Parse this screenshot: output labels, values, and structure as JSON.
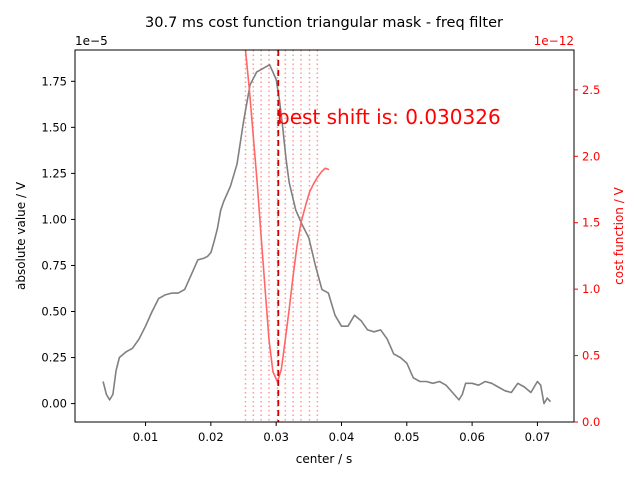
{
  "chart_data": {
    "type": "line",
    "title": "30.7 ms cost function triangular mask - freq filter",
    "xlabel": "center / s",
    "ylabel": "absolute value / V",
    "y2label": "cost function / V",
    "xlim": [
      -0.0008,
      0.0756
    ],
    "ylim": [
      -0.1,
      1.92
    ],
    "y2lim": [
      0.0,
      2.8
    ],
    "x_ticks": [
      0.01,
      0.02,
      0.03,
      0.04,
      0.05,
      0.06,
      0.07
    ],
    "y_ticks": [
      0.0,
      0.25,
      0.5,
      0.75,
      1.0,
      1.25,
      1.5,
      1.75
    ],
    "y2_ticks": [
      0.0,
      0.5,
      1.0,
      1.5,
      2.0,
      2.5
    ],
    "y_offset_text": "1e−5",
    "y2_offset_text": "1e−12",
    "annotation": "best shift is: 0.030326",
    "best_shift": 0.030326,
    "shift_lines_x": [
      0.0253,
      0.0265,
      0.0277,
      0.0289,
      0.0302,
      0.0314,
      0.0326,
      0.0338,
      0.0351,
      0.0363
    ],
    "grid": false,
    "series": [
      {
        "axis": "left",
        "color": "#808080",
        "x": [
          0.0035,
          0.004,
          0.0045,
          0.005,
          0.0055,
          0.006,
          0.007,
          0.008,
          0.009,
          0.01,
          0.011,
          0.012,
          0.013,
          0.014,
          0.015,
          0.016,
          0.017,
          0.018,
          0.019,
          0.0195,
          0.02,
          0.0205,
          0.021,
          0.0215,
          0.022,
          0.023,
          0.024,
          0.025,
          0.026,
          0.027,
          0.028,
          0.029,
          0.03,
          0.0305,
          0.031,
          0.0315,
          0.032,
          0.033,
          0.034,
          0.035,
          0.036,
          0.037,
          0.038,
          0.039,
          0.04,
          0.041,
          0.042,
          0.043,
          0.044,
          0.045,
          0.046,
          0.047,
          0.048,
          0.049,
          0.05,
          0.051,
          0.052,
          0.053,
          0.054,
          0.055,
          0.056,
          0.057,
          0.058,
          0.0585,
          0.059,
          0.06,
          0.061,
          0.062,
          0.063,
          0.064,
          0.065,
          0.066,
          0.067,
          0.068,
          0.069,
          0.07,
          0.0705,
          0.071,
          0.0715,
          0.072
        ],
        "values": [
          0.12,
          0.05,
          0.02,
          0.05,
          0.18,
          0.25,
          0.28,
          0.3,
          0.35,
          0.42,
          0.5,
          0.57,
          0.59,
          0.6,
          0.6,
          0.62,
          0.7,
          0.78,
          0.79,
          0.8,
          0.82,
          0.88,
          0.95,
          1.05,
          1.1,
          1.18,
          1.3,
          1.53,
          1.73,
          1.8,
          1.82,
          1.84,
          1.76,
          1.65,
          1.5,
          1.33,
          1.2,
          1.05,
          0.97,
          0.9,
          0.75,
          0.62,
          0.6,
          0.48,
          0.42,
          0.42,
          0.48,
          0.45,
          0.4,
          0.39,
          0.4,
          0.35,
          0.27,
          0.25,
          0.22,
          0.14,
          0.12,
          0.12,
          0.11,
          0.12,
          0.1,
          0.06,
          0.02,
          0.05,
          0.11,
          0.11,
          0.1,
          0.12,
          0.11,
          0.09,
          0.07,
          0.06,
          0.11,
          0.09,
          0.06,
          0.12,
          0.1,
          0.0,
          0.03,
          0.01
        ]
      },
      {
        "axis": "right",
        "color": "#ff6666",
        "x": [
          0.0253,
          0.0259,
          0.0265,
          0.0271,
          0.0277,
          0.0283,
          0.0289,
          0.0295,
          0.0302,
          0.0308,
          0.0314,
          0.032,
          0.0326,
          0.0332,
          0.0338,
          0.0345,
          0.0351,
          0.0357,
          0.0363,
          0.0369,
          0.0375,
          0.0381
        ],
        "values": [
          2.8,
          2.5,
          2.15,
          1.8,
          1.4,
          1.0,
          0.62,
          0.38,
          0.3,
          0.4,
          0.62,
          0.85,
          1.1,
          1.33,
          1.5,
          1.63,
          1.73,
          1.79,
          1.84,
          1.88,
          1.91,
          1.9
        ]
      }
    ]
  }
}
